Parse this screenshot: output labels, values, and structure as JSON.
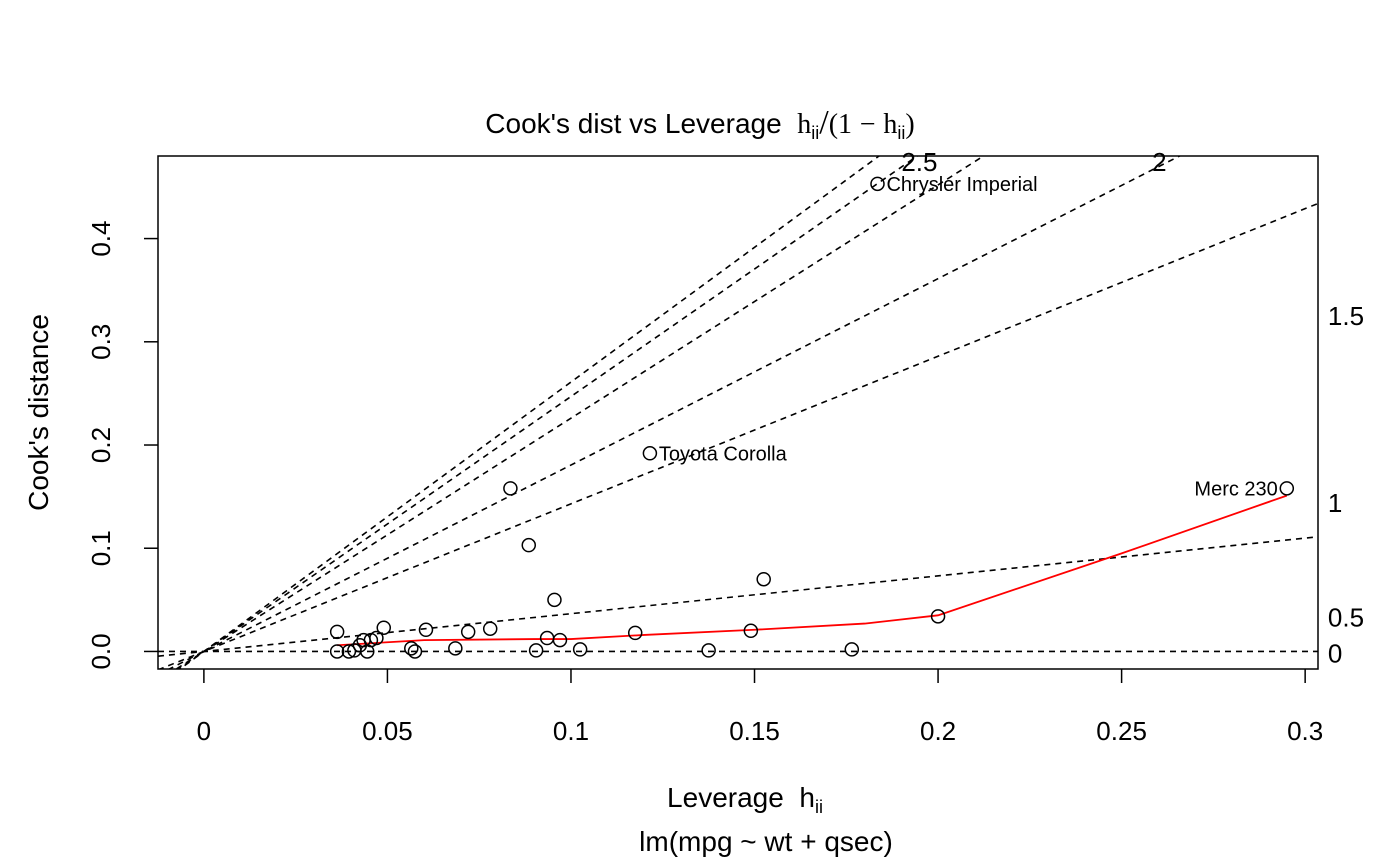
{
  "chart_data": {
    "type": "scatter",
    "title": {
      "prefix": "Cook's dist vs Leverage",
      "h": "h",
      "ii": "ii",
      "open": "(1",
      "minus": "−",
      "close": ")",
      "slash": "/"
    },
    "xlabel": {
      "text": "Leverage",
      "h": "h",
      "ii": "ii"
    },
    "ylabel": "Cook's distance",
    "subtitle": "lm(mpg ~ wt + qsec)",
    "xlim": [
      -0.0125,
      0.3035
    ],
    "ylim": [
      -0.017,
      0.48
    ],
    "xticks": [
      {
        "value": 0,
        "label": "0"
      },
      {
        "value": 0.05,
        "label": "0.05"
      },
      {
        "value": 0.1,
        "label": "0.1"
      },
      {
        "value": 0.15,
        "label": "0.15"
      },
      {
        "value": 0.2,
        "label": "0.2"
      },
      {
        "value": 0.25,
        "label": "0.25"
      },
      {
        "value": 0.3,
        "label": "0.3"
      }
    ],
    "yticks": [
      {
        "value": 0.0,
        "label": "0.0"
      },
      {
        "value": 0.1,
        "label": "0.1"
      },
      {
        "value": 0.2,
        "label": "0.2"
      },
      {
        "value": 0.3,
        "label": "0.3"
      },
      {
        "value": 0.4,
        "label": "0.4"
      }
    ],
    "points": [
      {
        "x": 0.0363,
        "y": 0.019
      },
      {
        "x": 0.0363,
        "y": 0.0
      },
      {
        "x": 0.0395,
        "y": 0.0
      },
      {
        "x": 0.041,
        "y": 0.001
      },
      {
        "x": 0.0425,
        "y": 0.006
      },
      {
        "x": 0.0435,
        "y": 0.011
      },
      {
        "x": 0.0445,
        "y": 0.0
      },
      {
        "x": 0.0455,
        "y": 0.011
      },
      {
        "x": 0.047,
        "y": 0.013
      },
      {
        "x": 0.049,
        "y": 0.023
      },
      {
        "x": 0.0565,
        "y": 0.003
      },
      {
        "x": 0.0575,
        "y": 0.0
      },
      {
        "x": 0.0605,
        "y": 0.021
      },
      {
        "x": 0.0685,
        "y": 0.003
      },
      {
        "x": 0.072,
        "y": 0.019
      },
      {
        "x": 0.078,
        "y": 0.022
      },
      {
        "x": 0.0835,
        "y": 0.158
      },
      {
        "x": 0.0885,
        "y": 0.103
      },
      {
        "x": 0.0905,
        "y": 0.001
      },
      {
        "x": 0.0935,
        "y": 0.013
      },
      {
        "x": 0.0955,
        "y": 0.05
      },
      {
        "x": 0.097,
        "y": 0.011
      },
      {
        "x": 0.1025,
        "y": 0.002
      },
      {
        "x": 0.1175,
        "y": 0.018
      },
      {
        "x": 0.1215,
        "y": 0.192,
        "label": "Toyota Corolla",
        "pos": "right"
      },
      {
        "x": 0.1375,
        "y": 0.001
      },
      {
        "x": 0.149,
        "y": 0.02
      },
      {
        "x": 0.1525,
        "y": 0.07
      },
      {
        "x": 0.1765,
        "y": 0.002
      },
      {
        "x": 0.1835,
        "y": 0.453,
        "label": "Chrysler Imperial",
        "pos": "right"
      },
      {
        "x": 0.2,
        "y": 0.034
      },
      {
        "x": 0.295,
        "y": 0.158,
        "label": "Merc 230",
        "pos": "left"
      }
    ],
    "smooth_line": {
      "color": "#ff0000",
      "x": [
        0.0363,
        0.06,
        0.09,
        0.1,
        0.12,
        0.15,
        0.18,
        0.2,
        0.25,
        0.295
      ],
      "y": [
        0.006,
        0.011,
        0.012,
        0.012,
        0.016,
        0.021,
        0.027,
        0.035,
        0.095,
        0.151
      ]
    },
    "contours": [
      {
        "label": "0",
        "slope": 0
      },
      {
        "label": "0.5",
        "slope": 0.366
      },
      {
        "label": "1",
        "slope": 1.43
      },
      {
        "label": "1.5",
        "slope": 2.26
      },
      {
        "label": "2",
        "slope": 1.806
      },
      {
        "label": "2.5",
        "slope": 2.47
      },
      {
        "label": "",
        "slope": 2.61
      }
    ],
    "contour_labels": [
      {
        "label": "0",
        "x": 0.3062,
        "y": -0.001
      },
      {
        "label": "0.5",
        "x": 0.3062,
        "y": 0.034
      },
      {
        "label": "1",
        "x": 0.3062,
        "y": 0.145
      },
      {
        "label": "1.5",
        "x": 0.3062,
        "y": 0.326
      },
      {
        "label": "2",
        "x": 0.2583,
        "y": 0.475
      },
      {
        "label": "2.5",
        "x": 0.19,
        "y": 0.475
      }
    ],
    "grid": false,
    "legend": "none"
  }
}
